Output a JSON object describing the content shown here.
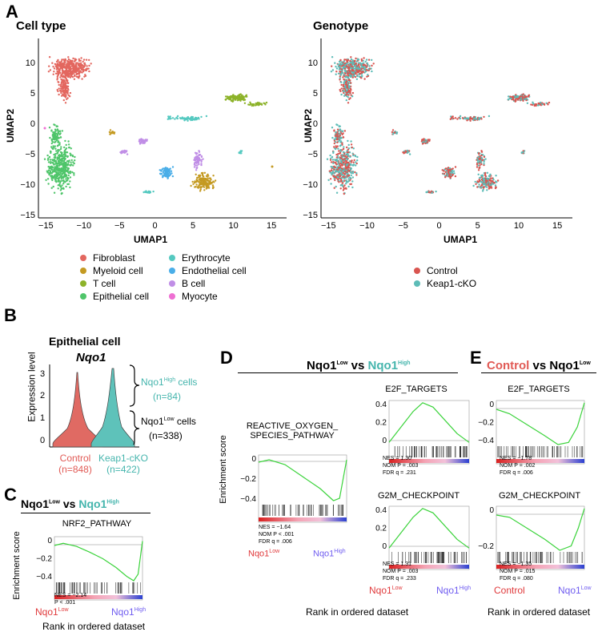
{
  "panels": {
    "a": "A",
    "b": "B",
    "c": "C",
    "d": "D",
    "e": "E"
  },
  "umap": {
    "left_title": "Cell type",
    "right_title": "Genotype",
    "xlabel": "UMAP1",
    "ylabel": "UMAP2",
    "xticks": [
      "−15",
      "−10",
      "−5",
      "0",
      "5",
      "10",
      "15"
    ],
    "yticks": [
      "10",
      "5",
      "0",
      "−5",
      "−10",
      "−15"
    ]
  },
  "celltype_legend": [
    {
      "label": "Fibroblast",
      "color": "#e3675f"
    },
    {
      "label": "Myeloid cell",
      "color": "#c49a22"
    },
    {
      "label": "T cell",
      "color": "#8db32a"
    },
    {
      "label": "Epithelial cell",
      "color": "#4fc56a"
    },
    {
      "label": "Erythrocyte",
      "color": "#55c9c0"
    },
    {
      "label": "Endothelial cell",
      "color": "#4aaee8"
    },
    {
      "label": "B cell",
      "color": "#c08ee6"
    },
    {
      "label": "Myocyte",
      "color": "#ee6fd2"
    }
  ],
  "genotype_legend": [
    {
      "label": "Control",
      "color": "#d95550"
    },
    {
      "label": "Keap1-cKO",
      "color": "#5dbcb7"
    }
  ],
  "violin": {
    "title": "Epithelial cell",
    "gene": "Nqo1",
    "ylabel": "Expression level",
    "yticks": [
      "3",
      "2",
      "1",
      "0"
    ],
    "high_label": "Nqo1",
    "high_sup": "High",
    "high_suffix": " cells",
    "high_n": "(n=84)",
    "low_label": "Nqo1",
    "low_sup": "Low",
    "low_suffix": " cells",
    "low_n": "(n=338)",
    "groups": [
      {
        "name": "Control",
        "n": "(n=848)"
      },
      {
        "name": "Keap1-cKO",
        "n": "(n=422)"
      }
    ]
  },
  "panel_c": {
    "header_a": "Nqo1",
    "header_a_sup": "Low",
    "vs": " vs ",
    "header_b": "Nqo1",
    "header_b_sup": "High",
    "pathway": "NRF2_PATHWAY",
    "ylabel": "Enrichment score",
    "yticks": [
      "0",
      "−0.2",
      "−0.4"
    ],
    "stats": [
      "NES = −2.14",
      "P < .001"
    ],
    "left": "Nqo1",
    "left_sup": "Low",
    "right": "Nqo1",
    "right_sup": "High",
    "xlabel": "Rank in ordered dataset"
  },
  "panel_d": {
    "header_a": "Nqo1",
    "header_a_sup": "Low",
    "vs": " vs ",
    "header_b": "Nqo1",
    "header_b_sup": "High",
    "ylabel": "Enrichment score",
    "ros_title_1": "REACTIVE_OXYGEN_",
    "ros_title_2": "SPECIES_PATHWAY",
    "ros_yticks": [
      "0",
      "−0.2",
      "−0.4"
    ],
    "ros_stats": [
      "NES = −1.64",
      "NOM P < .001",
      "FDR q = .006"
    ],
    "e2f_title": "E2F_TARGETS",
    "e2f_yticks": [
      "0.4",
      "0.2",
      "0"
    ],
    "e2f_stats": [
      "NES = 1.30",
      "NOM P = .003",
      "FDR q = .231"
    ],
    "g2m_title": "G2M_CHECKPOINT",
    "g2m_yticks": [
      "0.4",
      "0.2",
      "0"
    ],
    "g2m_stats": [
      "NES = 1.31",
      "NOM P = .003",
      "FDR q = .233"
    ],
    "left": "Nqo1",
    "left_sup": "Low",
    "right": "Nqo1",
    "right_sup": "High",
    "xlabel": "Rank in ordered dataset"
  },
  "panel_e": {
    "header_a": "Control",
    "vs": " vs ",
    "header_b": "Nqo1",
    "header_b_sup": "Low",
    "e2f_title": "E2F_TARGETS",
    "e2f_yticks": [
      "0",
      "−0.2",
      "−0.4"
    ],
    "e2f_stats": [
      "NES = −1.78",
      "NOM P = .002",
      "FDR q = .006"
    ],
    "g2m_title": "G2M_CHECKPOINT",
    "g2m_yticks": [
      "0",
      "−0.2"
    ],
    "g2m_stats": [
      "NES = −1.35",
      "NOM P = .015",
      "FDR q = .080"
    ],
    "left": "Control",
    "right": "Nqo1",
    "right_sup": "Low",
    "xlabel": "Rank in ordered dataset"
  }
}
